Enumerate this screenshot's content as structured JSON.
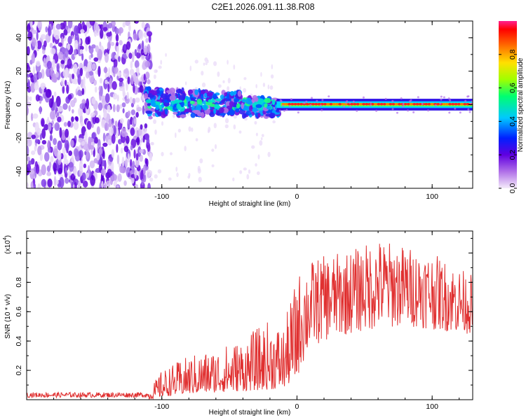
{
  "title": "C2E1.2026.091.11.38.R08",
  "chart_data": [
    {
      "type": "heatmap",
      "xlabel": "Height of straight line (km)",
      "ylabel": "Frequency (Hz)",
      "xlim": [
        -200,
        130
      ],
      "ylim": [
        -50,
        50
      ],
      "xticks": [
        -100,
        0,
        100
      ],
      "xtick_labels": [
        "-100",
        "0",
        "100"
      ],
      "yticks": [
        -40,
        -20,
        0,
        20,
        40
      ],
      "ytick_labels": [
        "-40",
        "-20",
        "0",
        "20",
        "40"
      ],
      "colorbar": {
        "label": "Normalized spectral amplitude",
        "range": [
          0,
          1
        ],
        "ticks": [
          0.0,
          0.2,
          0.4,
          0.6,
          0.8
        ],
        "tick_labels": [
          "0.0",
          "0.2",
          "0.4",
          "0.6",
          "0.8"
        ]
      },
      "regions": [
        {
          "x_range": [
            -200,
            -110
          ],
          "frequency_range": [
            -50,
            50
          ],
          "amplitude": 0.15,
          "description": "broadband noise"
        },
        {
          "x_range": [
            -110,
            -15
          ],
          "frequency_center": 0,
          "frequency_spread": 8,
          "amplitude": 0.35
        },
        {
          "x_range": [
            -15,
            130
          ],
          "frequency_center": 0,
          "frequency_spread": 2,
          "amplitude": 0.95
        }
      ]
    },
    {
      "type": "line",
      "xlabel": "Height of straight line (km)",
      "ylabel": "SNR (10 * v/v)",
      "y_scale_label": "(x10",
      "y_scale_exp": "4",
      "xlim": [
        -200,
        130
      ],
      "ylim": [
        0,
        11500
      ],
      "xticks": [
        -100,
        0,
        100
      ],
      "xtick_labels": [
        "-100",
        "0",
        "100"
      ],
      "yticks": [
        2000,
        4000,
        6000,
        8000,
        10000
      ],
      "ytick_labels": [
        "0.2",
        "0.4",
        "0.6",
        "0.8",
        "1"
      ],
      "color": "#e03030",
      "series": [
        {
          "name": "SNR",
          "envelope_x": [
            -200,
            -110,
            -100,
            -80,
            -60,
            -40,
            -20,
            -10,
            0,
            10,
            20,
            40,
            60,
            80,
            100,
            120,
            130
          ],
          "envelope_low": [
            0,
            0,
            200,
            400,
            500,
            600,
            700,
            800,
            1500,
            3500,
            4000,
            4500,
            4800,
            5000,
            4800,
            4500,
            4500
          ],
          "envelope_high": [
            500,
            600,
            2000,
            3000,
            3500,
            4200,
            5500,
            5000,
            8500,
            9500,
            9800,
            10200,
            11000,
            10500,
            10000,
            9000,
            8500
          ]
        }
      ]
    }
  ]
}
